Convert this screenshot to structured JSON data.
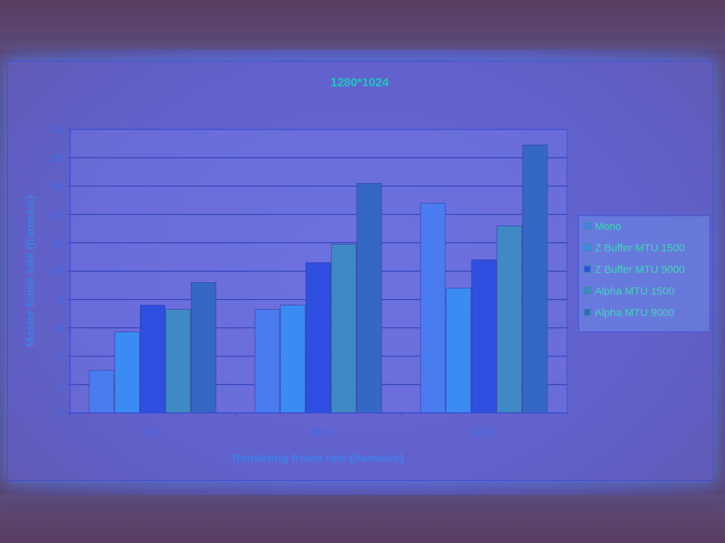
{
  "chart_data": {
    "type": "bar",
    "title": "1280*1024",
    "xlabel": "Rendering frame rate (frames/s)",
    "ylabel": "Master frame rate (frames/s)",
    "categories": [
      "12",
      "29,8",
      "59,8"
    ],
    "ylim": [
      0,
      20
    ],
    "yticks": [
      0,
      2,
      4,
      6,
      8,
      10,
      12,
      14,
      16,
      18,
      20
    ],
    "grid": true,
    "legend_position": "right",
    "series": [
      {
        "name": "Mono",
        "values": [
          3.0,
          7.3,
          14.8
        ],
        "color": "#4a7cf0"
      },
      {
        "name": "Z Buffer MTU 1500",
        "values": [
          5.7,
          7.6,
          8.8
        ],
        "color": "#3b8cf2"
      },
      {
        "name": "Z Buffer MTU 9000",
        "values": [
          7.6,
          10.6,
          10.8
        ],
        "color": "#2f4fe0"
      },
      {
        "name": "Alpha MTU 1500",
        "values": [
          7.3,
          11.9,
          13.2
        ],
        "color": "#3f8ac4"
      },
      {
        "name": "Alpha MTU 9000",
        "values": [
          9.2,
          16.2,
          18.9
        ],
        "color": "#3567c4"
      }
    ]
  }
}
